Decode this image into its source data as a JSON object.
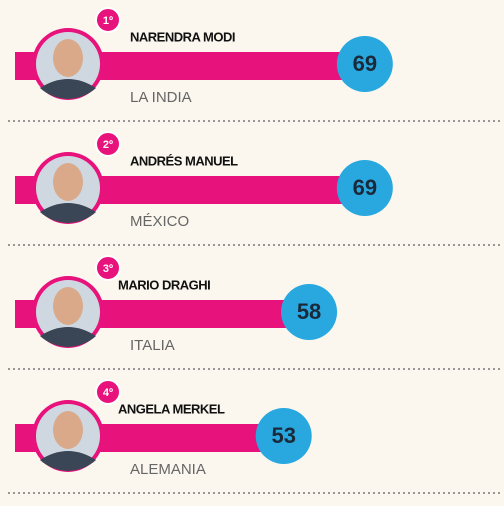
{
  "chart_data": {
    "type": "bar",
    "orientation": "horizontal",
    "categories": [
      "NARENDRA MODI",
      "ANDRÉS MANUEL",
      "MARIO DRAGHI",
      "ANGELA MERKEL"
    ],
    "countries": [
      "LA INDIA",
      "MÉXICO",
      "ITALIA",
      "ALEMANIA"
    ],
    "ranks": [
      "1º",
      "2º",
      "3º",
      "4º"
    ],
    "values": [
      69,
      69,
      58,
      53
    ],
    "color": "#e8127c",
    "label_color": "#29a8e0"
  }
}
